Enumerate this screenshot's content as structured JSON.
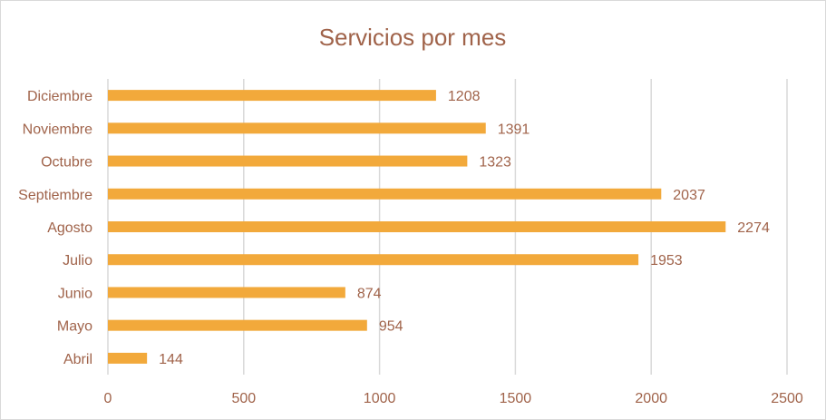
{
  "chart_data": {
    "type": "bar",
    "orientation": "horizontal",
    "title": "Servicios por mes",
    "xlabel": "",
    "ylabel": "",
    "categories": [
      "Abril",
      "Mayo",
      "Junio",
      "Julio",
      "Agosto",
      "Septiembre",
      "Octubre",
      "Noviembre",
      "Diciembre"
    ],
    "values": [
      144,
      954,
      874,
      1953,
      2274,
      2037,
      1323,
      1391,
      1208
    ],
    "xlim": [
      0,
      2500
    ],
    "xticks": [
      0,
      500,
      1000,
      1500,
      2000,
      2500
    ],
    "grid": true,
    "legend": "none",
    "bar_color": "#f2a93b",
    "text_color": "#a0634a",
    "grid_color": "#d9d9d9"
  }
}
